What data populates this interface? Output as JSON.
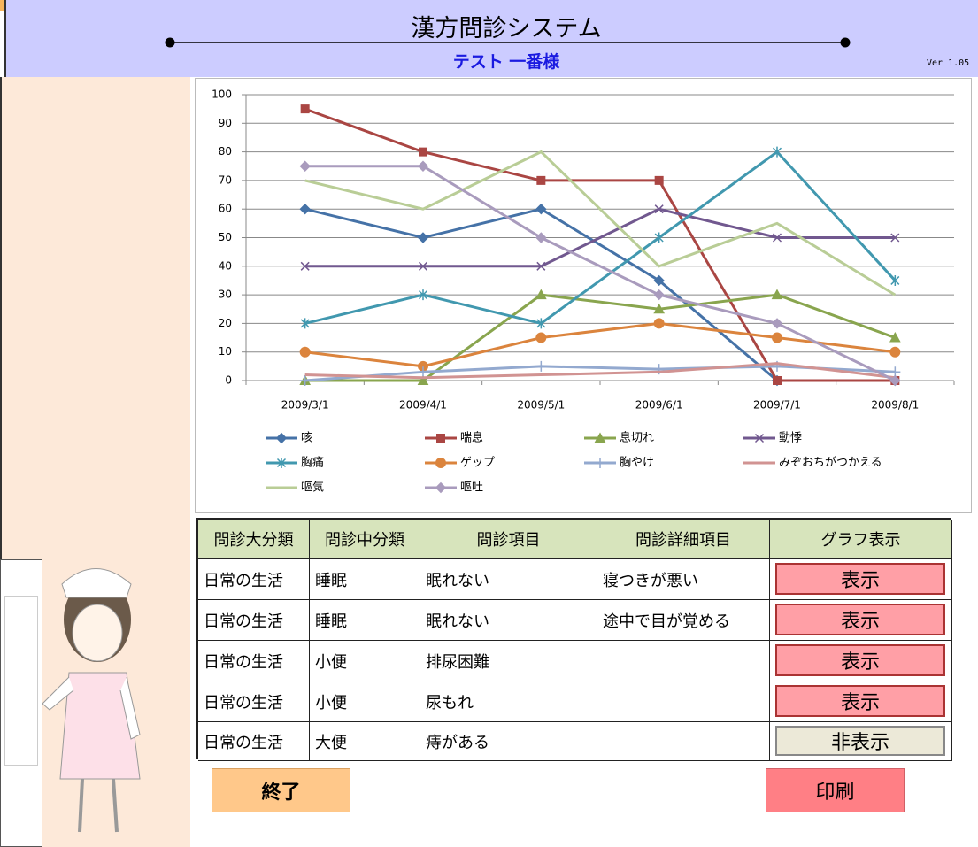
{
  "header": {
    "title": "漢方問診システム",
    "subtitle": "テスト 一番様",
    "version": "Ver 1.05"
  },
  "chart_data": {
    "type": "line",
    "categories": [
      "2009/3/1",
      "2009/4/1",
      "2009/5/1",
      "2009/6/1",
      "2009/7/1",
      "2009/8/1"
    ],
    "ylim": [
      0,
      100
    ],
    "yticks": [
      0,
      10,
      20,
      30,
      40,
      50,
      60,
      70,
      80,
      90,
      100
    ],
    "grid": true,
    "legend": "bottom",
    "series": [
      {
        "name": "咳",
        "color": "#4572a7",
        "marker": "diamond",
        "values": [
          60,
          50,
          60,
          35,
          0,
          0
        ]
      },
      {
        "name": "喘息",
        "color": "#aa4643",
        "marker": "square",
        "values": [
          95,
          80,
          70,
          70,
          0,
          0
        ]
      },
      {
        "name": "息切れ",
        "color": "#89a54e",
        "marker": "triangle",
        "values": [
          0,
          0,
          30,
          25,
          30,
          15
        ]
      },
      {
        "name": "動悸",
        "color": "#71588f",
        "marker": "x",
        "values": [
          40,
          40,
          40,
          60,
          50,
          50
        ]
      },
      {
        "name": "胸痛",
        "color": "#4198af",
        "marker": "star",
        "values": [
          20,
          30,
          20,
          50,
          80,
          35
        ]
      },
      {
        "name": "ゲップ",
        "color": "#db843d",
        "marker": "circle",
        "values": [
          10,
          5,
          15,
          20,
          15,
          10
        ]
      },
      {
        "name": "胸やけ",
        "color": "#93a9cf",
        "marker": "plus",
        "values": [
          0,
          3,
          5,
          4,
          5,
          3
        ]
      },
      {
        "name": "みぞおちがつかえる",
        "color": "#d19392",
        "marker": "none",
        "values": [
          2,
          1,
          2,
          3,
          6,
          1
        ]
      },
      {
        "name": "嘔気",
        "color": "#b9cd96",
        "marker": "none",
        "values": [
          70,
          60,
          80,
          40,
          55,
          30
        ]
      },
      {
        "name": "嘔吐",
        "color": "#a99bbd",
        "marker": "diamond",
        "values": [
          75,
          75,
          50,
          30,
          20,
          0
        ]
      }
    ]
  },
  "table": {
    "columns": [
      "問診大分類",
      "問診中分類",
      "問診項目",
      "問診詳細項目",
      "グラフ表示"
    ],
    "rows": [
      [
        "日常の生活",
        "睡眠",
        "眠れない",
        "寝つきが悪い",
        "表示"
      ],
      [
        "日常の生活",
        "睡眠",
        "眠れない",
        "途中で目が覚める",
        "表示"
      ],
      [
        "日常の生活",
        "小便",
        "排尿困難",
        null,
        "表示"
      ],
      [
        "日常の生活",
        "小便",
        "尿もれ",
        null,
        "表示"
      ],
      [
        "日常の生活",
        "大便",
        "痔がある",
        null,
        "非表示"
      ]
    ]
  },
  "buttons": {
    "close": "終了",
    "print": "印刷"
  }
}
